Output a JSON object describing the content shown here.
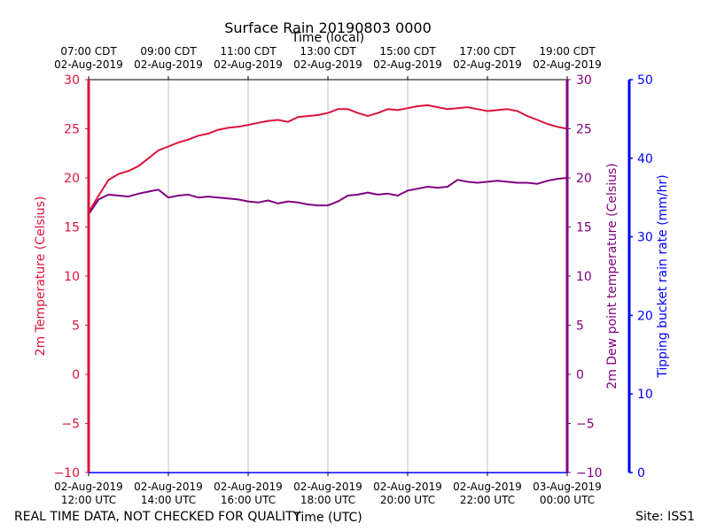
{
  "chart_data": {
    "type": "line",
    "title": "Surface Rain 20190803 0000",
    "xlabel": "Time (UTC)",
    "x2label": "Time (local)",
    "ylabel": "2m Temperature (Celsius)",
    "y2label": "2m Dew point temperature (Celsius)",
    "y3label": "Tipping bucket rain rate (mm/hr)",
    "ylim": [
      -10,
      30
    ],
    "y3lim": [
      0,
      50
    ],
    "xlim_hours_utc": [
      12,
      24
    ],
    "grid": "vertical",
    "y_ticks": [
      "30",
      "25",
      "20",
      "15",
      "10",
      "5",
      "0",
      "−5",
      "−10"
    ],
    "y3_ticks": [
      "50",
      "40",
      "30",
      "20",
      "10",
      "0"
    ],
    "x_ticks": [
      {
        "h": 12,
        "utc_time": "12:00 UTC",
        "utc_date": "02-Aug-2019",
        "local_time": "07:00 CDT",
        "local_date": "02-Aug-2019"
      },
      {
        "h": 14,
        "utc_time": "14:00 UTC",
        "utc_date": "02-Aug-2019",
        "local_time": "09:00 CDT",
        "local_date": "02-Aug-2019"
      },
      {
        "h": 16,
        "utc_time": "16:00 UTC",
        "utc_date": "02-Aug-2019",
        "local_time": "11:00 CDT",
        "local_date": "02-Aug-2019"
      },
      {
        "h": 18,
        "utc_time": "18:00 UTC",
        "utc_date": "02-Aug-2019",
        "local_time": "13:00 CDT",
        "local_date": "02-Aug-2019"
      },
      {
        "h": 20,
        "utc_time": "20:00 UTC",
        "utc_date": "02-Aug-2019",
        "local_time": "15:00 CDT",
        "local_date": "02-Aug-2019"
      },
      {
        "h": 22,
        "utc_time": "22:00 UTC",
        "utc_date": "02-Aug-2019",
        "local_time": "17:00 CDT",
        "local_date": "02-Aug-2019"
      },
      {
        "h": 24,
        "utc_time": "00:00 UTC",
        "utc_date": "03-Aug-2019",
        "local_time": "19:00 CDT",
        "local_date": "02-Aug-2019"
      }
    ],
    "series": [
      {
        "name": "2m Temperature",
        "color": "#dc143c",
        "x_hours_utc": [
          12.0,
          12.25,
          12.5,
          12.75,
          13.0,
          13.25,
          13.5,
          13.75,
          14.0,
          14.25,
          14.5,
          14.75,
          15.0,
          15.25,
          15.5,
          15.75,
          16.0,
          16.25,
          16.5,
          16.75,
          17.0,
          17.25,
          17.5,
          17.75,
          18.0,
          18.25,
          18.5,
          18.75,
          19.0,
          19.25,
          19.5,
          19.75,
          20.0,
          20.25,
          20.5,
          20.75,
          21.0,
          21.25,
          21.5,
          21.75,
          22.0,
          22.25,
          22.5,
          22.75,
          23.0,
          23.25,
          23.5,
          23.75,
          24.0
        ],
        "values": [
          16.5,
          18.2,
          19.8,
          20.4,
          20.7,
          21.2,
          22.0,
          22.8,
          23.2,
          23.6,
          23.9,
          24.3,
          24.5,
          24.9,
          25.1,
          25.2,
          25.4,
          25.6,
          25.8,
          25.9,
          25.7,
          26.2,
          26.3,
          26.4,
          26.6,
          27.0,
          27.0,
          26.6,
          26.3,
          26.6,
          27.0,
          26.9,
          27.1,
          27.3,
          27.4,
          27.2,
          27.0,
          27.1,
          27.2,
          27.0,
          26.8,
          26.9,
          27.0,
          26.8,
          26.3,
          25.9,
          25.5,
          25.2,
          25.0
        ]
      },
      {
        "name": "2m Dew point temperature",
        "color": "#800080",
        "x_hours_utc": [
          12.0,
          12.25,
          12.5,
          12.75,
          13.0,
          13.25,
          13.5,
          13.75,
          14.0,
          14.25,
          14.5,
          14.75,
          15.0,
          15.25,
          15.5,
          15.75,
          16.0,
          16.25,
          16.5,
          16.75,
          17.0,
          17.25,
          17.5,
          17.75,
          18.0,
          18.25,
          18.5,
          18.75,
          19.0,
          19.25,
          19.5,
          19.75,
          20.0,
          20.25,
          20.5,
          20.75,
          21.0,
          21.25,
          21.5,
          21.75,
          22.0,
          22.25,
          22.5,
          22.75,
          23.0,
          23.25,
          23.5,
          23.75,
          24.0
        ],
        "values": [
          16.3,
          17.8,
          18.3,
          18.2,
          18.1,
          18.4,
          18.6,
          18.8,
          18.0,
          18.2,
          18.3,
          18.0,
          18.1,
          18.0,
          17.9,
          17.8,
          17.6,
          17.5,
          17.7,
          17.4,
          17.6,
          17.5,
          17.3,
          17.2,
          17.2,
          17.6,
          18.2,
          18.3,
          18.5,
          18.3,
          18.4,
          18.2,
          18.7,
          18.9,
          19.1,
          19.0,
          19.1,
          19.8,
          19.6,
          19.5,
          19.6,
          19.7,
          19.6,
          19.5,
          19.5,
          19.4,
          19.7,
          19.9,
          20.0
        ]
      }
    ]
  },
  "footer": {
    "disclaimer": "REAL TIME DATA, NOT CHECKED FOR QUALITY",
    "site": "Site: ISS1"
  },
  "colors": {
    "temperature": "#dc143c",
    "dewpoint": "#800080",
    "rain": "#0000ff",
    "grid": "#b0b0b0"
  }
}
